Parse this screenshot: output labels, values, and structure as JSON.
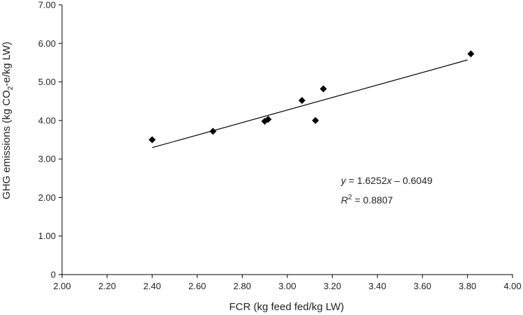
{
  "chart_data": {
    "type": "scatter",
    "title": "",
    "xlabel": "FCR (kg feed fed/kg LW)",
    "ylabel_parts": [
      "GHG emissions (kg CO",
      "2",
      "-e/kg LW)"
    ],
    "xlim": [
      2.0,
      4.0
    ],
    "ylim": [
      0,
      7.0
    ],
    "xticks": [
      2.0,
      2.2,
      2.4,
      2.6,
      2.8,
      3.0,
      3.2,
      3.4,
      3.6,
      3.8,
      4.0
    ],
    "xtick_labels": [
      "2.00",
      "2.20",
      "2.40",
      "2.60",
      "2.80",
      "3.00",
      "3.20",
      "3.40",
      "3.60",
      "3.80",
      "4.00"
    ],
    "yticks": [
      0,
      1,
      2,
      3,
      4,
      5,
      6,
      7
    ],
    "ytick_labels": [
      "0",
      "1.00",
      "2.00",
      "3.00",
      "4.00",
      "5.00",
      "6.00",
      "7.00"
    ],
    "grid": false,
    "marker": "diamond",
    "marker_color": "#000000",
    "x": [
      2.4,
      2.67,
      2.9,
      2.915,
      3.065,
      3.125,
      3.16,
      3.815
    ],
    "y": [
      3.5,
      3.72,
      3.98,
      4.03,
      4.52,
      4.0,
      4.82,
      5.73
    ],
    "trendline": {
      "slope": 1.6252,
      "intercept": -0.6049,
      "x_range": [
        2.4,
        3.8
      ]
    },
    "annotation": {
      "equation_parts": [
        "y",
        " = 1.6252",
        "x",
        " – 0.6049"
      ],
      "r2_parts": [
        "R",
        "2",
        " = 0.8807"
      ]
    }
  }
}
